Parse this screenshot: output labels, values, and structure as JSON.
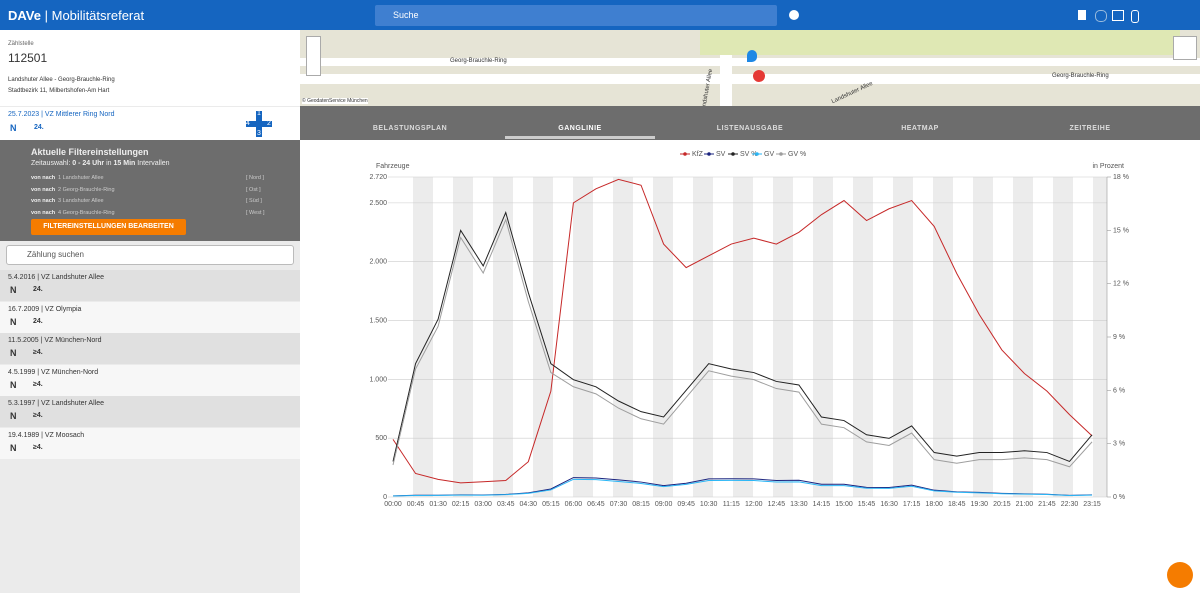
{
  "header": {
    "app": "DAVe",
    "subtitle": "Mobilitätsreferat",
    "search": "Suche"
  },
  "station": {
    "label": "Zählstelle",
    "id": "112501",
    "name": "Landshuter Allee - Georg-Brauchle-Ring",
    "district": "Stadtbezirk 11, Milbertshofen-Am Hart"
  },
  "current": {
    "title": "25.7.2023 | VZ Mittlerer Ring Nord",
    "tags": [
      "N",
      "24."
    ],
    "arms": [
      "1",
      "2",
      "3",
      "4"
    ]
  },
  "filter": {
    "title": "Aktuelle Filtereinstellungen",
    "time_label": "Zeitauswahl:",
    "time_range": "0 - 24 Uhr",
    "time_in": "in",
    "interval": "15 Min",
    "interval_suffix": "Intervallen",
    "rows": [
      {
        "from": "von nach",
        "arm": "1 Landshuter Allee",
        "dir": "[ Nord ]"
      },
      {
        "from": "von nach",
        "arm": "2 Georg-Brauchle-Ring",
        "dir": "[ Ost ]"
      },
      {
        "from": "von nach",
        "arm": "3 Landshuter Allee",
        "dir": "[ Süd ]"
      },
      {
        "from": "von nach",
        "arm": "4 Georg-Brauchle-Ring",
        "dir": "[ West ]"
      }
    ],
    "button": "FILTEREINSTELLUNGEN BEARBEITEN"
  },
  "search": {
    "placeholder": "Zählung suchen"
  },
  "list": [
    {
      "title": "5.4.2016 | VZ Landshuter Allee",
      "tags": [
        "N",
        "24."
      ]
    },
    {
      "title": "16.7.2009 | VZ Olympia",
      "tags": [
        "N",
        "24."
      ]
    },
    {
      "title": "11.5.2005 | VZ München-Nord",
      "tags": [
        "N",
        "≥4."
      ]
    },
    {
      "title": "4.5.1999 | VZ München-Nord",
      "tags": [
        "N",
        "≥4."
      ]
    },
    {
      "title": "5.3.1997 | VZ Landshuter Allee",
      "tags": [
        "N",
        "≥4."
      ]
    },
    {
      "title": "19.4.1989 | VZ Moosach",
      "tags": [
        "N",
        "≥4."
      ]
    }
  ],
  "map": {
    "labels": [
      "Georg-Brauchle-Ring",
      "Georg-Brauchle-Ring",
      "Landshuter Allee",
      "Landshuter Allee"
    ],
    "credit": "© GeodatenService München"
  },
  "tabs": [
    "BELASTUNGSPLAN",
    "GANGLINIE",
    "LISTENAUSGABE",
    "HEATMAP",
    "ZEITREIHE"
  ],
  "chart_data": {
    "type": "line",
    "ylabel": "Fahrzeuge",
    "y2label": "in Prozent",
    "categories": [
      "00:00",
      "00:45",
      "01:30",
      "02:15",
      "03:00",
      "03:45",
      "04:30",
      "05:15",
      "06:00",
      "06:45",
      "07:30",
      "08:15",
      "09:00",
      "09:45",
      "10:30",
      "11:15",
      "12:00",
      "12:45",
      "13:30",
      "14:15",
      "15:00",
      "15:45",
      "16:30",
      "17:15",
      "18:00",
      "18:45",
      "19:30",
      "20:15",
      "21:00",
      "21:45",
      "22:30",
      "23:15"
    ],
    "ylim": [
      0,
      2720
    ],
    "yticks": [
      0,
      500,
      {
        "value": 1000,
        "label": "1.000"
      },
      {
        "value": 1500,
        "label": "1.500"
      },
      {
        "value": 2000,
        "label": "2.000"
      },
      {
        "value": 2500,
        "label": "2.500"
      },
      {
        "value": 2720,
        "label": "2.720"
      }
    ],
    "y2lim": [
      0,
      18
    ],
    "y2ticks": [
      {
        "value": 0,
        "label": "0 %"
      },
      {
        "value": 3,
        "label": "3 %"
      },
      {
        "value": 6,
        "label": "6 %"
      },
      {
        "value": 9,
        "label": "9 %"
      },
      {
        "value": 12,
        "label": "12 %"
      },
      {
        "value": 15,
        "label": "15 %"
      },
      {
        "value": 18,
        "label": "18 %"
      }
    ],
    "series": [
      {
        "name": "KfZ",
        "color": "#c62828",
        "values": [
          490,
          200,
          150,
          120,
          130,
          140,
          300,
          900,
          2500,
          2620,
          2700,
          2650,
          2150,
          1950,
          2050,
          2150,
          2200,
          2150,
          2250,
          2400,
          2520,
          2350,
          2450,
          2520,
          2300,
          1900,
          1550,
          1250,
          1050,
          900,
          700,
          520
        ]
      },
      {
        "name": "SV",
        "color": "#1a237e",
        "values": [
          10,
          15,
          15,
          18,
          17,
          22,
          35,
          68,
          165,
          162,
          146,
          127,
          97,
          117,
          154,
          155,
          154,
          140,
          142,
          108,
          108,
          82,
          81,
          101,
          58,
          44,
          39,
          31,
          27,
          23,
          14,
          18
        ]
      },
      {
        "name": "SV %",
        "color": "#222222",
        "axis": "y2",
        "values": [
          2,
          7.5,
          10,
          15,
          13,
          16,
          11.5,
          7.5,
          6.6,
          6.2,
          5.4,
          4.8,
          4.5,
          6,
          7.5,
          7.2,
          7,
          6.5,
          6.3,
          4.5,
          4.3,
          3.5,
          3.3,
          4,
          2.5,
          2.3,
          2.5,
          2.5,
          2.6,
          2.5,
          2,
          3.5
        ]
      },
      {
        "name": "GV",
        "color": "#29b6f6",
        "values": [
          9,
          13,
          14,
          16,
          15,
          20,
          31,
          60,
          150,
          148,
          132,
          115,
          88,
          107,
          140,
          141,
          140,
          127,
          129,
          97,
          97,
          74,
          73,
          91,
          52,
          40,
          35,
          28,
          24,
          21,
          13,
          16
        ]
      },
      {
        "name": "GV %",
        "color": "#9e9e9e",
        "axis": "y2",
        "values": [
          1.8,
          7.2,
          9.6,
          14.6,
          12.6,
          15.6,
          11,
          7,
          6.2,
          5.8,
          5,
          4.4,
          4.1,
          5.6,
          7.1,
          6.8,
          6.6,
          6.1,
          5.9,
          4.1,
          3.9,
          3.1,
          2.9,
          3.6,
          2.1,
          1.9,
          2.1,
          2.1,
          2.2,
          2.1,
          1.7,
          3.1
        ]
      }
    ]
  }
}
